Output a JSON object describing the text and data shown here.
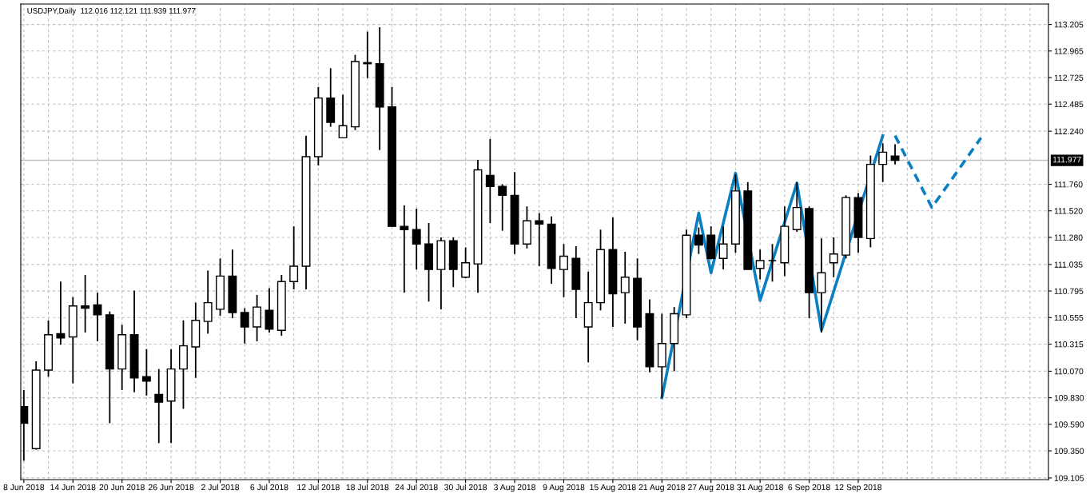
{
  "chart_data": {
    "type": "candlestick",
    "title": "USDJPY,Daily  112.016 112.121 111.939 111.977",
    "categories": [
      "8 Jun 2018",
      null,
      null,
      null,
      "14 Jun 2018",
      null,
      null,
      null,
      "20 Jun 2018",
      null,
      null,
      null,
      "26 Jun 2018",
      null,
      null,
      null,
      "2 Jul 2018",
      null,
      null,
      null,
      "6 Jul 2018",
      null,
      null,
      null,
      "12 Jul 2018",
      null,
      null,
      null,
      "18 Jul 2018",
      null,
      null,
      null,
      "24 Jul 2018",
      null,
      null,
      null,
      "30 Jul 2018",
      null,
      null,
      null,
      "3 Aug 2018",
      null,
      null,
      null,
      "9 Aug 2018",
      null,
      null,
      null,
      "15 Aug 2018",
      null,
      null,
      null,
      "21 Aug 2018",
      null,
      null,
      null,
      "27 Aug 2018",
      null,
      null,
      null,
      "31 Aug 2018",
      null,
      null,
      null,
      "6 Sep 2018",
      null,
      null,
      null,
      "12 Sep 2018",
      null,
      null,
      null,
      null,
      null,
      null,
      null,
      null,
      null,
      null,
      null,
      null,
      null,
      null,
      null
    ],
    "ohlc": [
      [
        109.75,
        109.9,
        109.26,
        109.6
      ],
      [
        109.37,
        110.16,
        109.36,
        110.08
      ],
      [
        110.08,
        110.53,
        110.02,
        110.4
      ],
      [
        110.41,
        110.88,
        110.31,
        110.37
      ],
      [
        110.38,
        110.74,
        109.96,
        110.66
      ],
      [
        110.66,
        110.94,
        110.42,
        110.64
      ],
      [
        110.67,
        110.78,
        110.34,
        110.58
      ],
      [
        110.58,
        110.61,
        109.6,
        110.09
      ],
      [
        110.09,
        110.49,
        109.9,
        110.4
      ],
      [
        110.4,
        110.8,
        109.88,
        110.01
      ],
      [
        110.02,
        110.27,
        109.85,
        109.98
      ],
      [
        109.86,
        110.09,
        109.42,
        109.79
      ],
      [
        109.8,
        110.27,
        109.42,
        110.09
      ],
      [
        110.09,
        110.53,
        109.73,
        110.3
      ],
      [
        110.29,
        110.69,
        110.01,
        110.53
      ],
      [
        110.52,
        110.98,
        110.41,
        110.69
      ],
      [
        110.63,
        111.09,
        110.57,
        110.93
      ],
      [
        110.93,
        111.17,
        110.55,
        110.6
      ],
      [
        110.6,
        110.64,
        110.32,
        110.47
      ],
      [
        110.47,
        110.76,
        110.34,
        110.65
      ],
      [
        110.62,
        110.82,
        110.42,
        110.45
      ],
      [
        110.44,
        110.94,
        110.39,
        110.88
      ],
      [
        110.88,
        111.38,
        110.81,
        111.02
      ],
      [
        111.02,
        112.2,
        110.81,
        112.01
      ],
      [
        112.01,
        112.64,
        111.93,
        112.54
      ],
      [
        112.54,
        112.81,
        112.28,
        112.32
      ],
      [
        112.18,
        112.57,
        112.18,
        112.29
      ],
      [
        112.28,
        112.93,
        112.25,
        112.87
      ],
      [
        112.86,
        113.14,
        112.72,
        112.85
      ],
      [
        112.85,
        113.18,
        112.07,
        112.46
      ],
      [
        112.46,
        112.64,
        111.38,
        111.38
      ],
      [
        111.38,
        111.57,
        110.78,
        111.35
      ],
      [
        111.35,
        111.54,
        110.99,
        111.22
      ],
      [
        111.22,
        111.41,
        110.7,
        110.99
      ],
      [
        110.99,
        111.28,
        110.63,
        111.25
      ],
      [
        111.25,
        111.28,
        110.83,
        110.99
      ],
      [
        110.92,
        111.19,
        110.91,
        111.05
      ],
      [
        111.04,
        111.98,
        110.78,
        111.89
      ],
      [
        111.84,
        112.17,
        111.41,
        111.74
      ],
      [
        111.74,
        111.76,
        111.34,
        111.66
      ],
      [
        111.66,
        111.87,
        111.13,
        111.22
      ],
      [
        111.22,
        111.56,
        111.18,
        111.43
      ],
      [
        111.43,
        111.5,
        111.02,
        111.4
      ],
      [
        111.4,
        111.47,
        110.86,
        111.0
      ],
      [
        110.99,
        111.22,
        110.74,
        111.11
      ],
      [
        111.09,
        111.2,
        110.55,
        110.81
      ],
      [
        110.47,
        110.97,
        110.15,
        110.69
      ],
      [
        110.69,
        111.35,
        110.62,
        111.17
      ],
      [
        111.17,
        111.46,
        110.47,
        110.77
      ],
      [
        110.78,
        111.15,
        110.5,
        110.92
      ],
      [
        110.91,
        111.09,
        110.35,
        110.47
      ],
      [
        110.59,
        110.72,
        110.06,
        110.11
      ],
      [
        110.11,
        110.59,
        109.83,
        110.32
      ],
      [
        110.32,
        110.65,
        110.07,
        110.59
      ],
      [
        110.58,
        111.35,
        110.55,
        111.3
      ],
      [
        111.3,
        111.37,
        111.13,
        111.21
      ],
      [
        111.3,
        111.38,
        111.08,
        111.09
      ],
      [
        111.09,
        111.38,
        110.99,
        111.22
      ],
      [
        111.22,
        111.85,
        111.14,
        111.7
      ],
      [
        111.7,
        111.78,
        110.99,
        110.99
      ],
      [
        111.0,
        111.17,
        110.9,
        111.07
      ],
      [
        111.07,
        111.22,
        110.88,
        111.07
      ],
      [
        111.05,
        111.56,
        110.93,
        111.38
      ],
      [
        111.35,
        111.78,
        111.33,
        111.55
      ],
      [
        111.54,
        111.56,
        110.55,
        110.78
      ],
      [
        110.78,
        111.27,
        110.42,
        110.96
      ],
      [
        111.05,
        111.28,
        110.92,
        111.13
      ],
      [
        111.12,
        111.66,
        111.09,
        111.64
      ],
      [
        111.64,
        111.68,
        111.14,
        111.28
      ],
      [
        111.27,
        112.02,
        111.19,
        111.94
      ],
      [
        111.94,
        112.13,
        111.78,
        112.05
      ],
      [
        112.016,
        112.121,
        111.939,
        111.977
      ],
      null,
      null,
      null,
      null,
      null,
      null,
      null,
      null,
      null,
      null,
      null,
      null
    ],
    "series": [
      {
        "type": "line",
        "color": "#0a7fc2",
        "line_style": "solid",
        "values": [
          null,
          null,
          null,
          null,
          null,
          null,
          null,
          null,
          null,
          null,
          null,
          null,
          null,
          null,
          null,
          null,
          null,
          null,
          null,
          null,
          null,
          null,
          null,
          null,
          null,
          null,
          null,
          null,
          null,
          null,
          null,
          null,
          null,
          null,
          null,
          null,
          null,
          null,
          null,
          null,
          null,
          null,
          null,
          null,
          null,
          null,
          null,
          null,
          null,
          null,
          null,
          null,
          109.83,
          null,
          null,
          111.5,
          110.96,
          null,
          111.86,
          null,
          110.71,
          null,
          null,
          111.77,
          null,
          110.44,
          null,
          null,
          null,
          null,
          112.2,
          null,
          null,
          null,
          null,
          null,
          null,
          null,
          null,
          null,
          null,
          null,
          null,
          null
        ]
      },
      {
        "type": "line",
        "color": "#0a7fc2",
        "line_style": "dashed",
        "values": [
          null,
          null,
          null,
          null,
          null,
          null,
          null,
          null,
          null,
          null,
          null,
          null,
          null,
          null,
          null,
          null,
          null,
          null,
          null,
          null,
          null,
          null,
          null,
          null,
          null,
          null,
          null,
          null,
          null,
          null,
          null,
          null,
          null,
          null,
          null,
          null,
          null,
          null,
          null,
          null,
          null,
          null,
          null,
          null,
          null,
          null,
          null,
          null,
          null,
          null,
          null,
          null,
          null,
          null,
          null,
          null,
          null,
          null,
          null,
          null,
          null,
          null,
          null,
          null,
          null,
          null,
          null,
          null,
          null,
          null,
          null,
          112.2,
          null,
          null,
          111.55,
          null,
          null,
          null,
          112.18,
          null,
          null,
          null,
          null,
          null
        ]
      }
    ],
    "ylim": [
      109.09,
      113.39
    ],
    "yticks": [
      {
        "value": 109.105,
        "label": "109.105"
      },
      {
        "value": 109.35,
        "label": "109.350"
      },
      {
        "value": 109.59,
        "label": "109.590"
      },
      {
        "value": 109.83,
        "label": "109.830"
      },
      {
        "value": 110.07,
        "label": "110.070"
      },
      110.315,
      110.555,
      110.795,
      111.035,
      {
        "value": 111.28,
        "label": "111.280"
      },
      {
        "value": 111.52,
        "label": "111.520"
      },
      {
        "value": 111.76,
        "label": "111.760"
      },
      {
        "value": 112.24,
        "label": "112.240"
      },
      112.485,
      112.725,
      112.965,
      113.205
    ],
    "ref_lines": [
      {
        "axis": "y",
        "value": 111.977,
        "label": "111.977",
        "color": "#c0c0c0",
        "line_style": "solid"
      }
    ],
    "grid": true
  }
}
